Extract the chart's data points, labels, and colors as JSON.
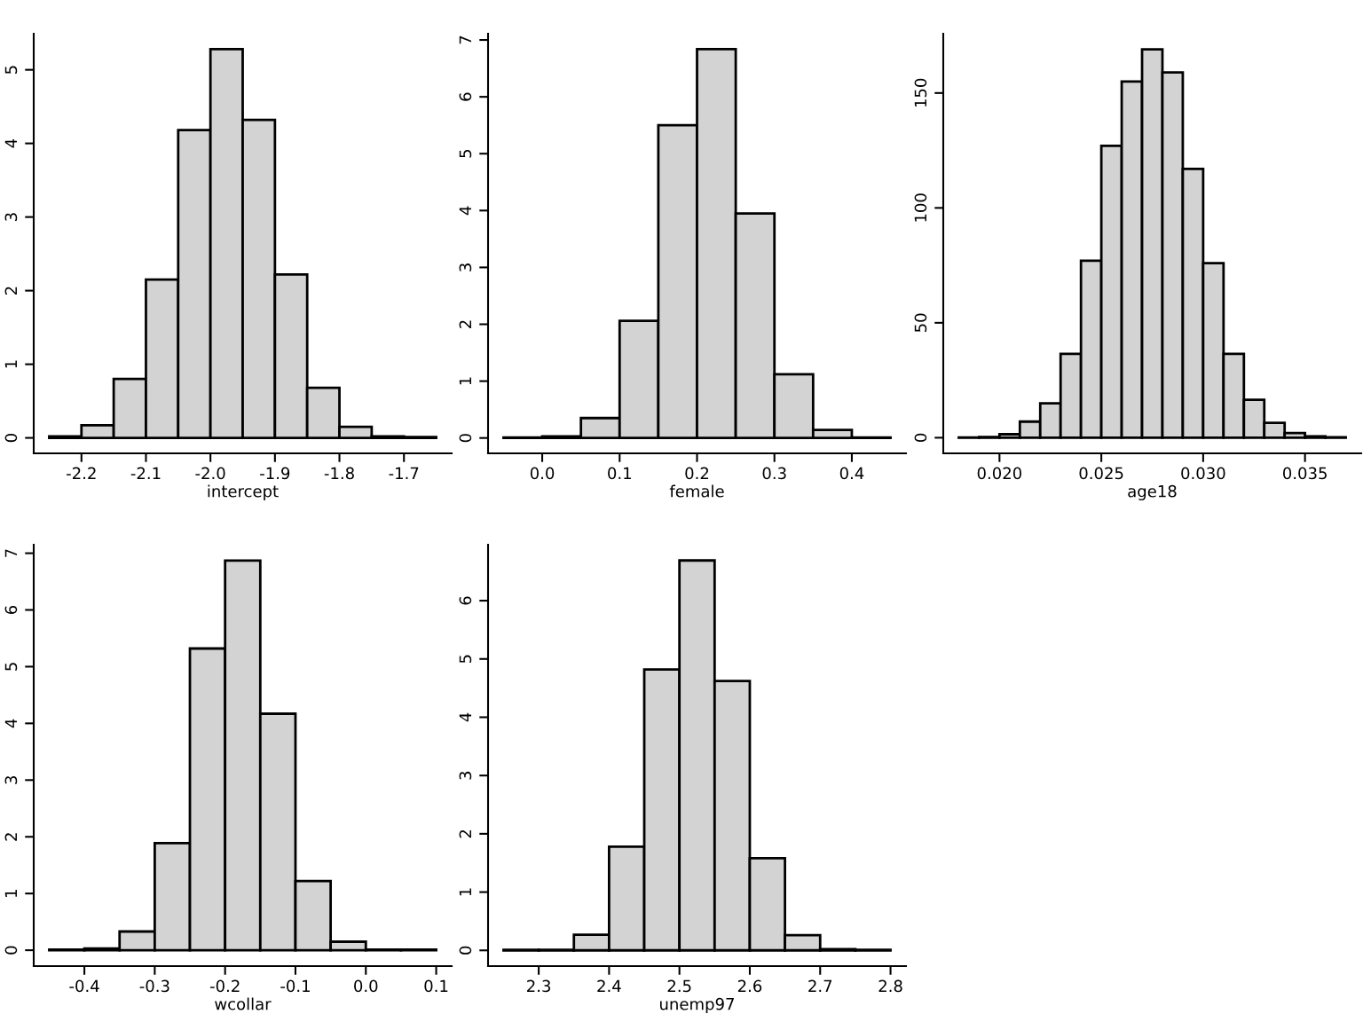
{
  "chart_data": [
    {
      "type": "histogram",
      "xlabel": "intercept",
      "color": "#d3d3d3",
      "bins": [
        -2.25,
        -2.2,
        -2.15,
        -2.1,
        -2.05,
        -2.0,
        -1.95,
        -1.9,
        -1.85,
        -1.8,
        -1.75,
        -1.7,
        -1.65
      ],
      "values": [
        0.02,
        0.17,
        0.8,
        2.15,
        4.18,
        5.28,
        4.32,
        2.22,
        0.68,
        0.15,
        0.02,
        0.01
      ],
      "xlim": [
        -2.274,
        -1.626
      ],
      "ylim": [
        -0.21,
        5.49
      ],
      "xticks": [
        {
          "value": -2.2,
          "label": "-2.2"
        },
        {
          "value": -2.1,
          "label": "-2.1"
        },
        {
          "value": -2.0,
          "label": "-2.0"
        },
        {
          "value": -1.9,
          "label": "-1.9"
        },
        {
          "value": -1.8,
          "label": "-1.8"
        },
        {
          "value": -1.7,
          "label": "-1.7"
        }
      ],
      "yticks": [
        0,
        1,
        2,
        3,
        4,
        5
      ]
    },
    {
      "type": "histogram",
      "xlabel": "female",
      "color": "#d3d3d3",
      "bins": [
        -0.05,
        0.0,
        0.05,
        0.1,
        0.15,
        0.2,
        0.25,
        0.3,
        0.35,
        0.4,
        0.45
      ],
      "values": [
        0.01,
        0.03,
        0.35,
        2.06,
        5.5,
        6.84,
        3.95,
        1.12,
        0.14,
        0.01
      ],
      "xlim": [
        -0.07,
        0.47
      ],
      "ylim": [
        -0.27,
        7.11
      ],
      "xticks": [
        {
          "value": 0.0,
          "label": "0.0"
        },
        0.1,
        0.2,
        0.3,
        0.4
      ],
      "yticks": [
        0,
        1,
        2,
        3,
        4,
        5,
        6,
        7
      ]
    },
    {
      "type": "histogram",
      "xlabel": "age18",
      "color": "#d3d3d3",
      "bins": [
        0.018,
        0.019,
        0.02,
        0.021,
        0.022,
        0.023,
        0.024,
        0.025,
        0.026,
        0.027,
        0.028,
        0.029,
        0.03,
        0.031,
        0.032,
        0.033,
        0.034,
        0.035,
        0.036,
        0.037
      ],
      "values": [
        0.1,
        0.3,
        1.5,
        7,
        15,
        36.5,
        77,
        127,
        155,
        169,
        159,
        117,
        76,
        36.5,
        16.5,
        6.5,
        2,
        0.6,
        0.2
      ],
      "xlim": [
        0.01724,
        0.03776
      ],
      "ylim": [
        -6.8,
        175.8
      ],
      "xticks": [
        {
          "value": 0.02,
          "label": "0.020"
        },
        {
          "value": 0.025,
          "label": "0.025"
        },
        {
          "value": 0.03,
          "label": "0.030"
        },
        {
          "value": 0.035,
          "label": "0.035"
        }
      ],
      "yticks": [
        0,
        50,
        100,
        150
      ]
    },
    {
      "type": "histogram",
      "xlabel": "wcollar",
      "color": "#d3d3d3",
      "bins": [
        -0.45,
        -0.4,
        -0.35,
        -0.3,
        -0.25,
        -0.2,
        -0.15,
        -0.1,
        -0.05,
        0.0,
        0.05,
        0.1
      ],
      "values": [
        0.01,
        0.03,
        0.33,
        1.89,
        5.32,
        6.87,
        4.17,
        1.22,
        0.15,
        0.01,
        0.01
      ],
      "xlim": [
        -0.472,
        0.122
      ],
      "ylim": [
        -0.28,
        7.15
      ],
      "xticks": [
        -0.4,
        -0.3,
        -0.2,
        -0.1,
        {
          "value": 0.0,
          "label": "0.0"
        },
        0.1
      ],
      "yticks": [
        0,
        1,
        2,
        3,
        4,
        5,
        6,
        7
      ]
    },
    {
      "type": "histogram",
      "xlabel": "unemp97",
      "color": "#d3d3d3",
      "bins": [
        2.25,
        2.3,
        2.35,
        2.4,
        2.45,
        2.5,
        2.55,
        2.6,
        2.65,
        2.7,
        2.75,
        2.8
      ],
      "values": [
        0.01,
        0.01,
        0.27,
        1.78,
        4.82,
        6.69,
        4.62,
        1.58,
        0.26,
        0.02,
        0.01
      ],
      "xlim": [
        2.228,
        2.822
      ],
      "ylim": [
        -0.27,
        6.96
      ],
      "xticks": [
        2.3,
        2.4,
        2.5,
        2.6,
        2.7,
        2.8
      ],
      "yticks": [
        0,
        1,
        2,
        3,
        4,
        5,
        6
      ]
    }
  ]
}
